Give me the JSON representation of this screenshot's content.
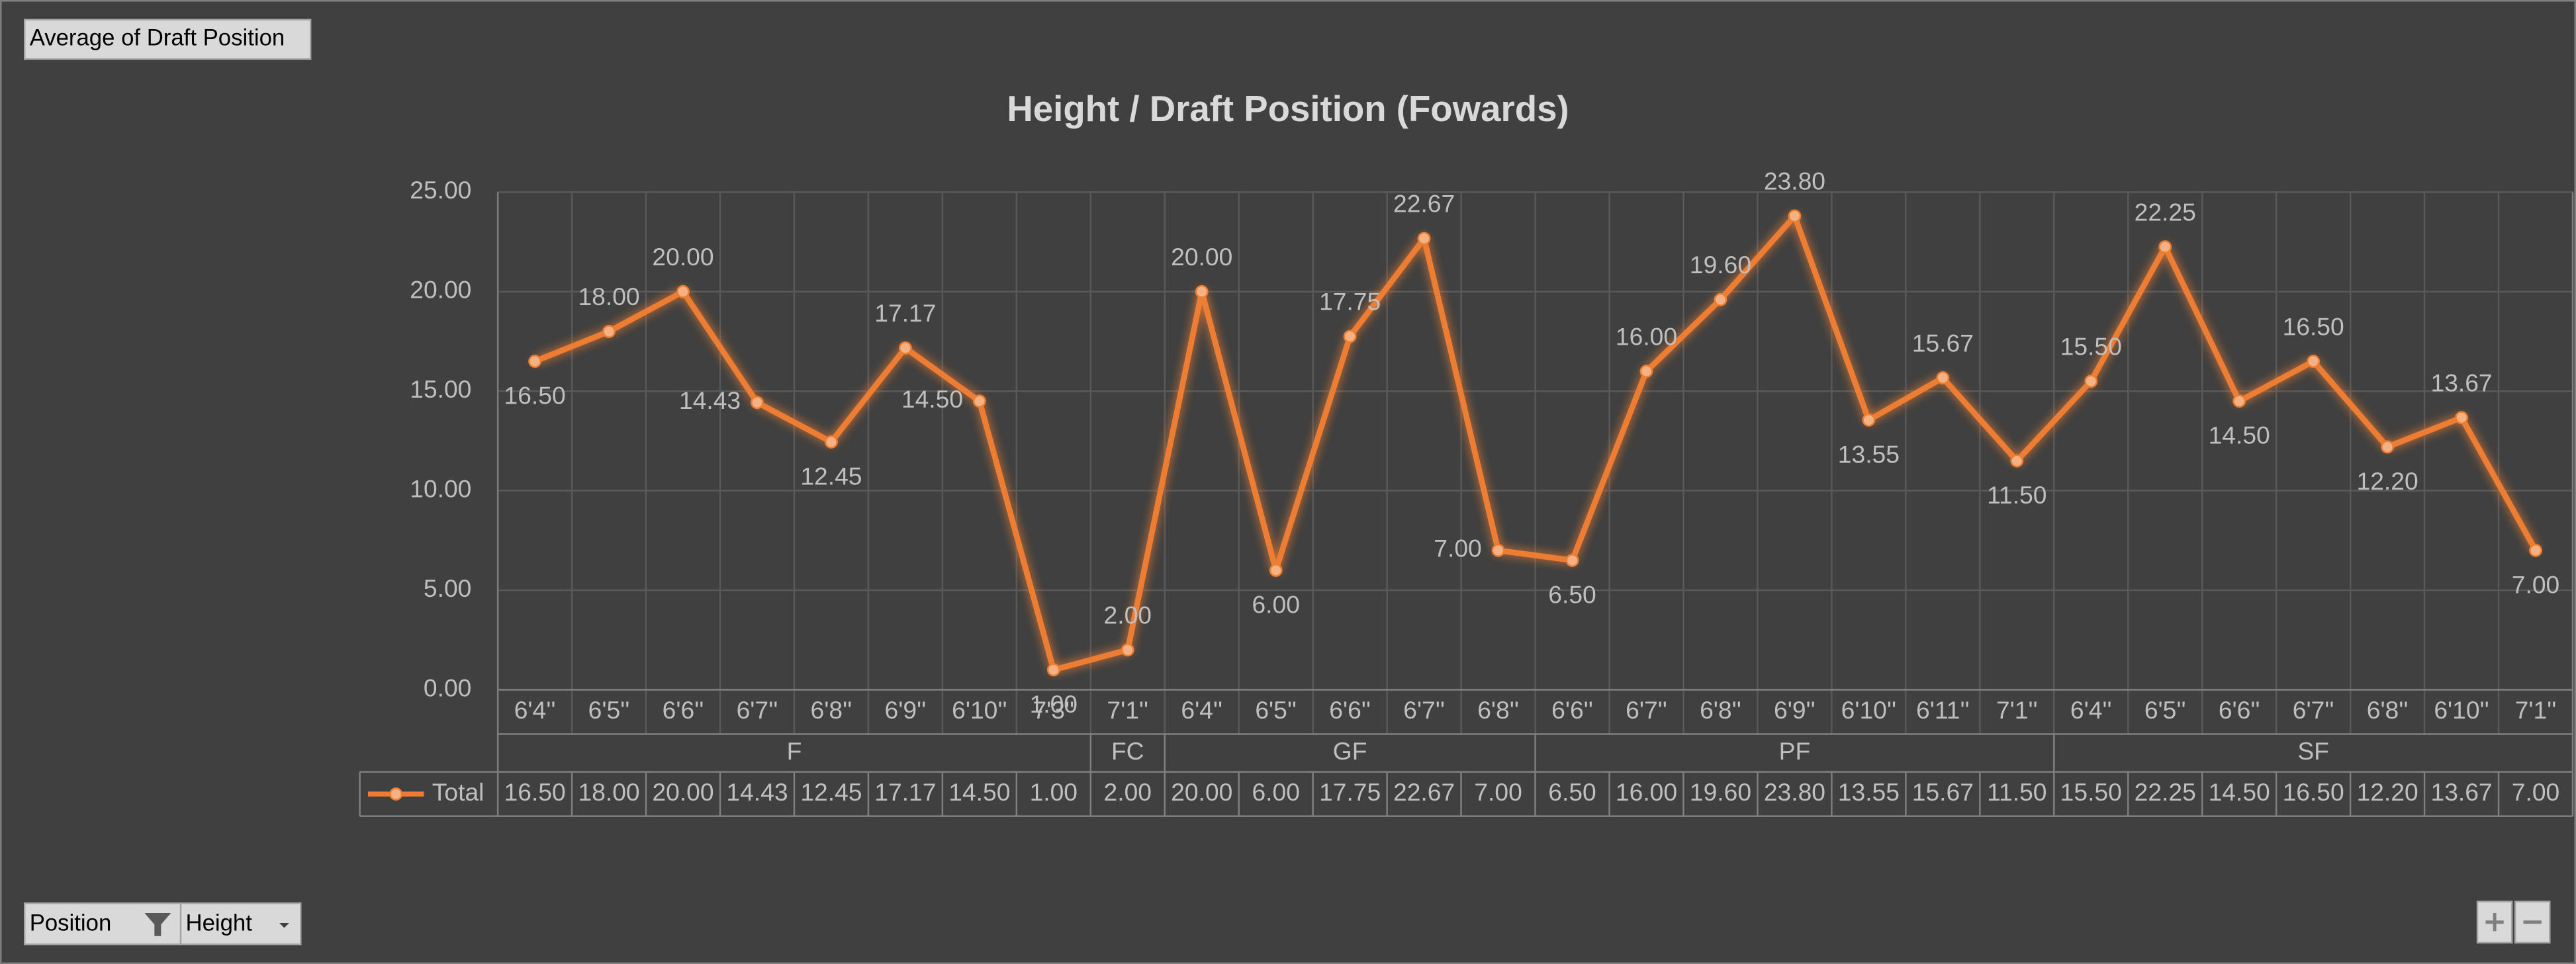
{
  "buttons": {
    "value_field": "Average of Draft Position",
    "row_field_1": "Position",
    "row_field_2": "Height"
  },
  "chart_data": {
    "type": "line",
    "title": "Height / Draft Position (Fowards)",
    "groups": [
      {
        "name": "F",
        "categories": [
          "6'4''",
          "6'5''",
          "6'6''",
          "6'7''",
          "6'8''",
          "6'9''",
          "6'10''",
          "7'3''"
        ]
      },
      {
        "name": "FC",
        "categories": [
          "7'1''"
        ]
      },
      {
        "name": "GF",
        "categories": [
          "6'4''",
          "6'5''",
          "6'6''",
          "6'7''",
          "6'8''"
        ]
      },
      {
        "name": "PF",
        "categories": [
          "6'6''",
          "6'7''",
          "6'8''",
          "6'9''",
          "6'10''",
          "6'11''",
          "7'1''"
        ]
      },
      {
        "name": "SF",
        "categories": [
          "6'4''",
          "6'5''",
          "6'6''",
          "6'7''",
          "6'8''",
          "6'10''",
          "7'1''"
        ]
      }
    ],
    "series": [
      {
        "name": "Total",
        "color": "#ed7d31",
        "values": [
          16.5,
          18,
          20,
          14.43,
          12.45,
          17.17,
          14.5,
          1,
          2,
          20,
          6,
          17.75,
          22.67,
          7,
          6.5,
          16,
          19.6,
          23.8,
          13.55,
          15.67,
          11.5,
          15.5,
          22.25,
          14.5,
          16.5,
          12.2,
          13.67,
          7
        ],
        "value_labels": [
          "16.50",
          "18.00",
          "20.00",
          "14.43",
          "12.45",
          "17.17",
          "14.50",
          "1.00",
          "2.00",
          "20.00",
          "6.00",
          "17.75",
          "22.67",
          "7.00",
          "6.50",
          "16.00",
          "19.60",
          "23.80",
          "13.55",
          "15.67",
          "11.50",
          "15.50",
          "22.25",
          "14.50",
          "16.50",
          "12.20",
          "13.67",
          "7.00"
        ]
      }
    ],
    "ylim": [
      0,
      25
    ],
    "yticks": [
      {
        "value": 0,
        "label": "0.00"
      },
      {
        "value": 5,
        "label": "5.00"
      },
      {
        "value": 10,
        "label": "10.00"
      },
      {
        "value": 15,
        "label": "15.00"
      },
      {
        "value": 20,
        "label": "20.00"
      },
      {
        "value": 25,
        "label": "25.00"
      }
    ],
    "grid": true
  }
}
